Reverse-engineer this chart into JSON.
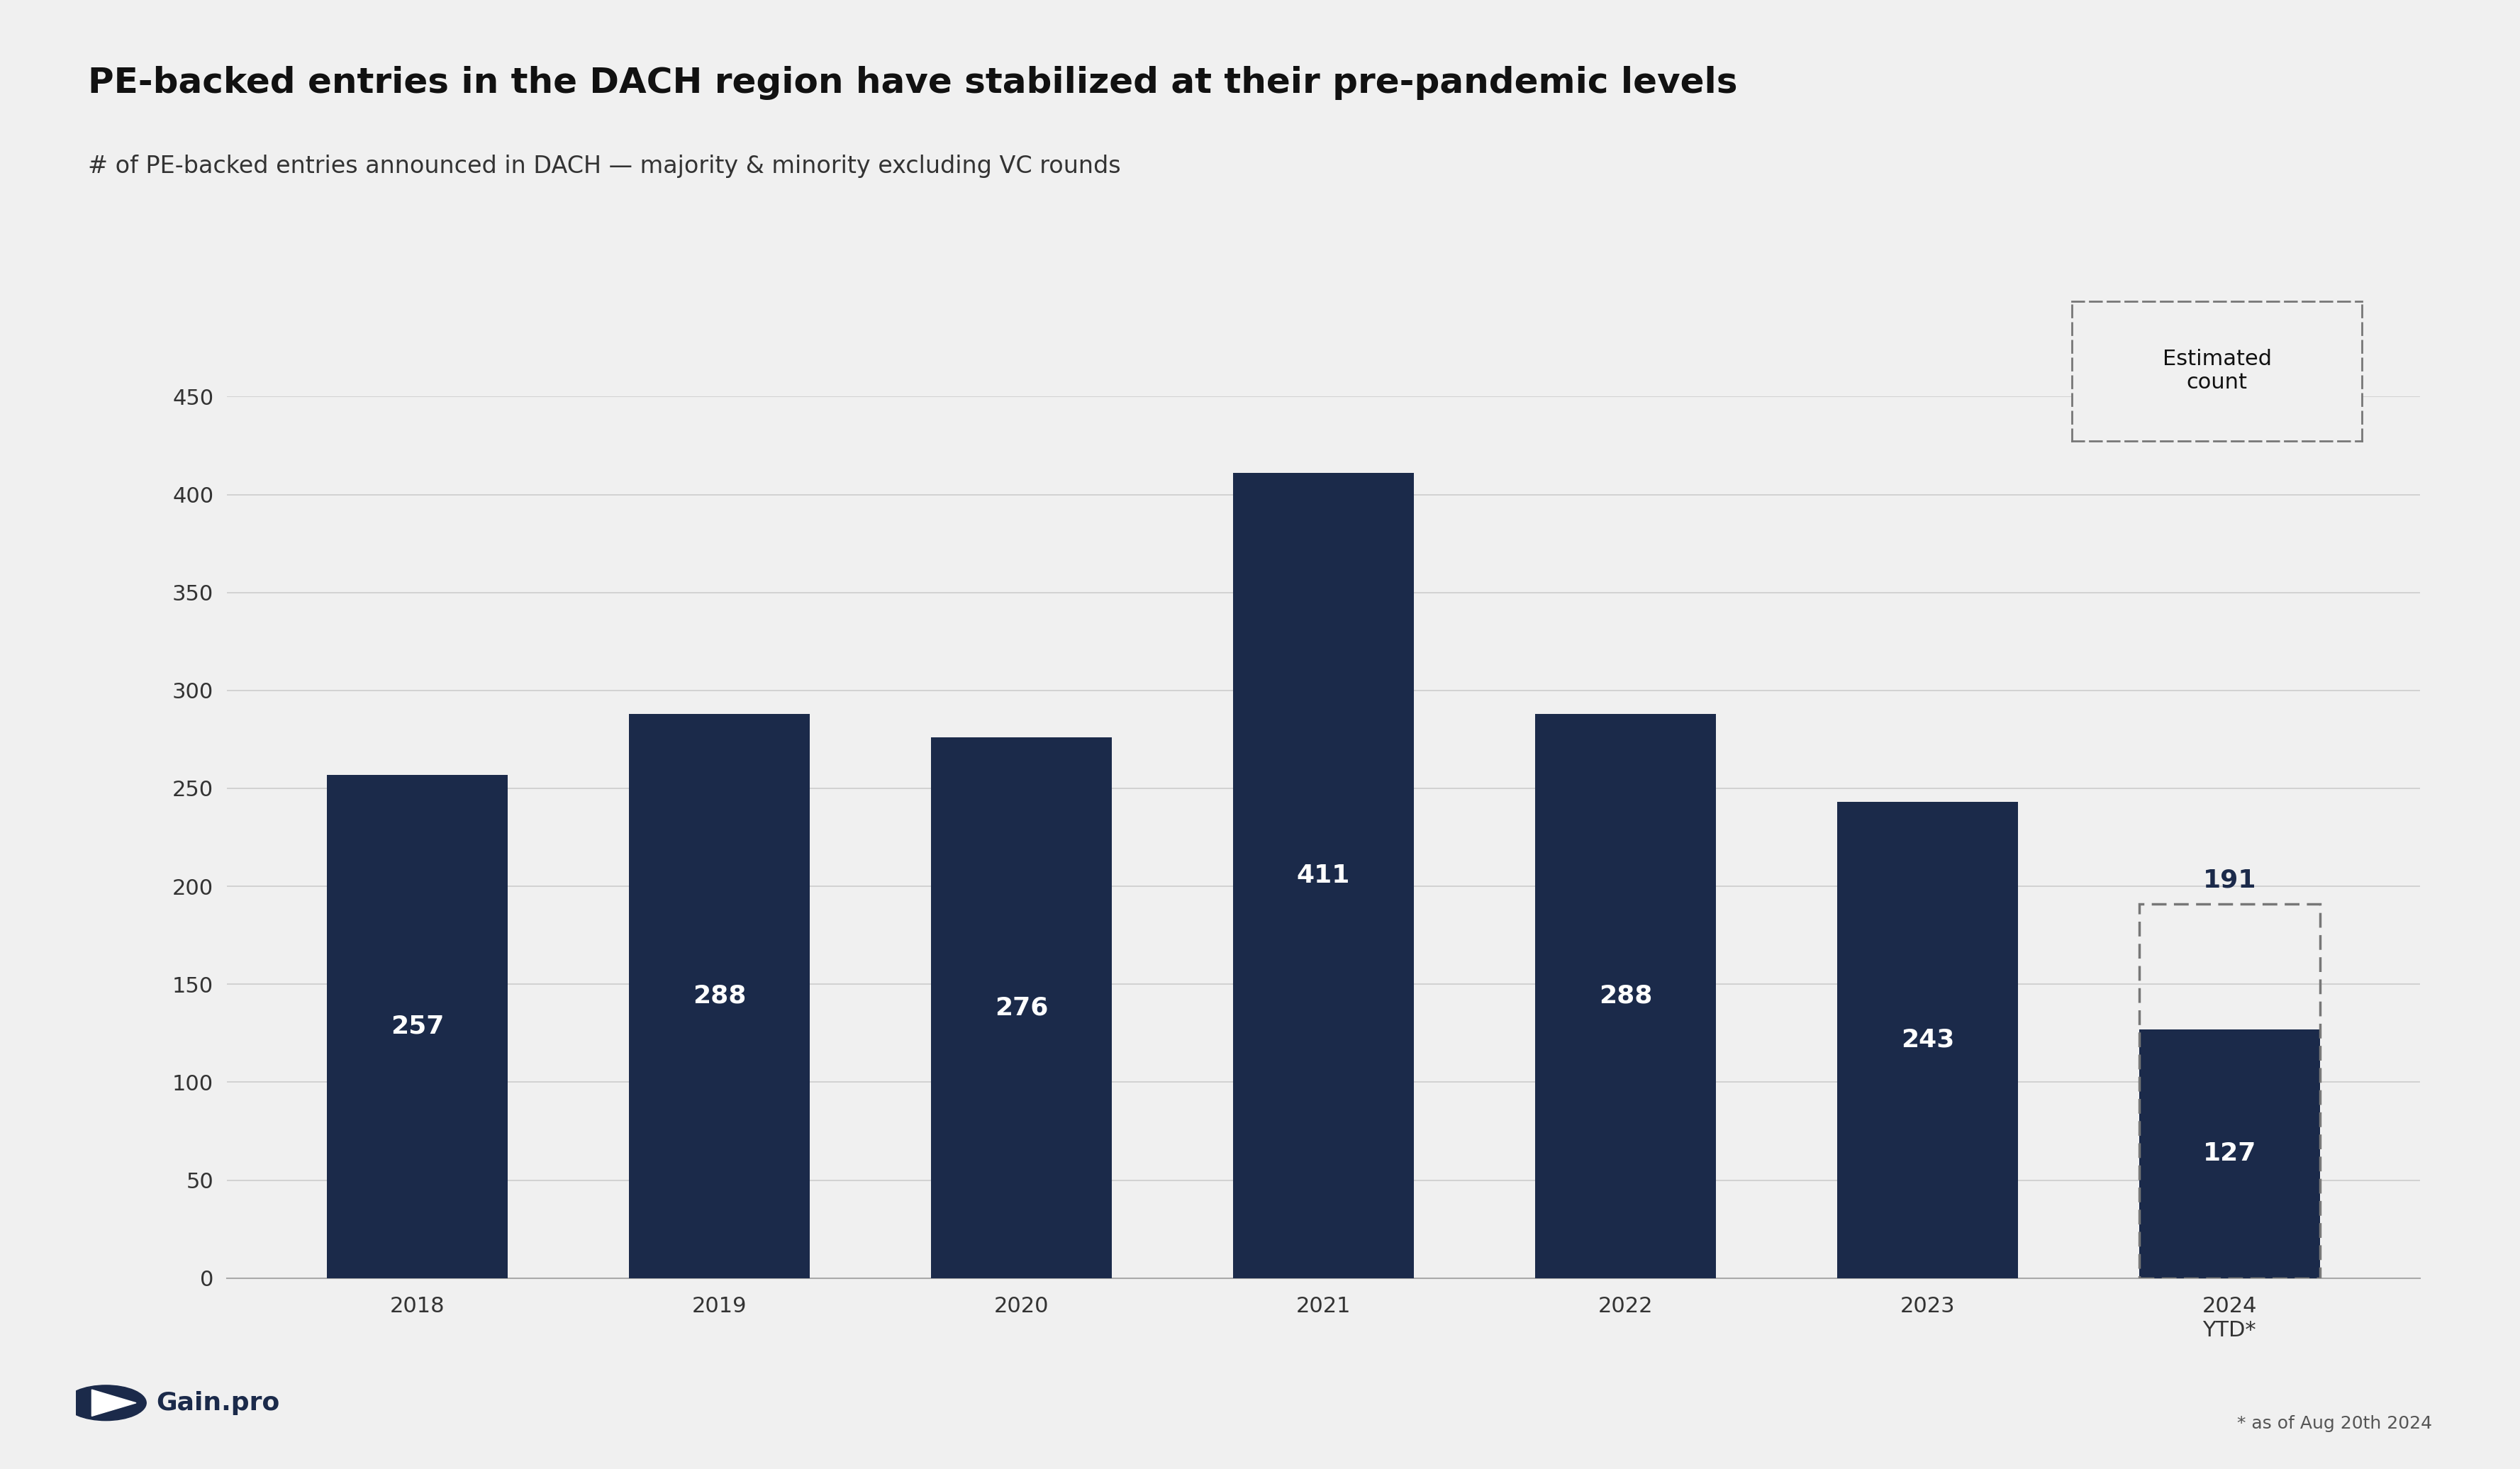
{
  "title": "PE-backed entries in the DACH region have stabilized at their pre-pandemic levels",
  "subtitle": "# of PE-backed entries announced in DACH — majority & minority excluding VC rounds",
  "categories": [
    "2018",
    "2019",
    "2020",
    "2021",
    "2022",
    "2023",
    "2024\nYTD*"
  ],
  "values": [
    257,
    288,
    276,
    411,
    288,
    243,
    127
  ],
  "estimated_value": 191,
  "bar_color": "#1b2a4a",
  "background_color": "#f0f0f0",
  "title_fontsize": 36,
  "subtitle_fontsize": 24,
  "bar_label_fontsize": 26,
  "estimated_label_fontsize": 26,
  "ytick_fontsize": 22,
  "xtick_fontsize": 22,
  "ylim": [
    0,
    450
  ],
  "yticks": [
    0,
    50,
    100,
    150,
    200,
    250,
    300,
    350,
    400,
    450
  ],
  "footnote": "* as of Aug 20th 2024",
  "legend_label": "Estimated\ncount",
  "legend_fontsize": 22,
  "logo_text": "Gain.pro",
  "logo_fontsize": 26
}
